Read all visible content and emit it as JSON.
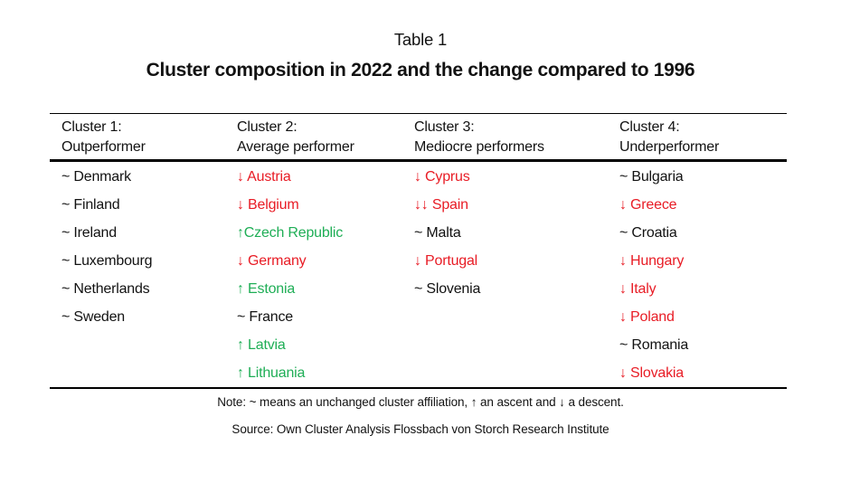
{
  "page": {
    "table_label": "Table 1",
    "title": "Cluster composition in 2022 and the change compared to 1996"
  },
  "colors": {
    "red": "#e81c25",
    "green": "#1fae56",
    "black": "#121212"
  },
  "legend_symbols": {
    "unchanged": "~",
    "ascent": "↑",
    "descent": "↓"
  },
  "table": {
    "columns": [
      {
        "title": "Cluster 1:",
        "subtitle": "Outperformer",
        "items": [
          {
            "label": "~ Denmark",
            "color": "black"
          },
          {
            "label": "~ Finland",
            "color": "black"
          },
          {
            "label": "~ Ireland",
            "color": "black"
          },
          {
            "label": "~ Luxembourg",
            "color": "black"
          },
          {
            "label": "~ Netherlands",
            "color": "black"
          },
          {
            "label": "~ Sweden",
            "color": "black"
          }
        ]
      },
      {
        "title": "Cluster 2:",
        "subtitle": "Average performer",
        "items": [
          {
            "label": "↓ Austria",
            "color": "red"
          },
          {
            "label": "↓ Belgium",
            "color": "red"
          },
          {
            "label": "↑Czech Republic",
            "color": "green"
          },
          {
            "label": "↓ Germany",
            "color": "red"
          },
          {
            "label": "↑ Estonia",
            "color": "green"
          },
          {
            "label": "~ France",
            "color": "black"
          },
          {
            "label": "↑ Latvia",
            "color": "green"
          },
          {
            "label": "↑ Lithuania",
            "color": "green"
          }
        ]
      },
      {
        "title": "Cluster 3:",
        "subtitle": "Mediocre performers",
        "items": [
          {
            "label": "↓ Cyprus",
            "color": "red"
          },
          {
            "label": "↓↓ Spain",
            "color": "red"
          },
          {
            "label": "~ Malta",
            "color": "black"
          },
          {
            "label": "↓ Portugal",
            "color": "red"
          },
          {
            "label": "~ Slovenia",
            "color": "black"
          }
        ]
      },
      {
        "title": "Cluster 4:",
        "subtitle": "Underperformer",
        "items": [
          {
            "label": "~ Bulgaria",
            "color": "black"
          },
          {
            "label": "↓ Greece",
            "color": "red"
          },
          {
            "label": "~ Croatia",
            "color": "black"
          },
          {
            "label": "↓ Hungary",
            "color": "red"
          },
          {
            "label": "↓ Italy",
            "color": "red"
          },
          {
            "label": "↓ Poland",
            "color": "red"
          },
          {
            "label": "~ Romania",
            "color": "black"
          },
          {
            "label": "↓ Slovakia",
            "color": "red"
          }
        ]
      }
    ]
  },
  "footer": {
    "note": "Note: ~ means an unchanged cluster affiliation, ↑ an ascent and ↓ a descent.",
    "source": "Source: Own Cluster Analysis Flossbach von Storch Research Institute"
  }
}
